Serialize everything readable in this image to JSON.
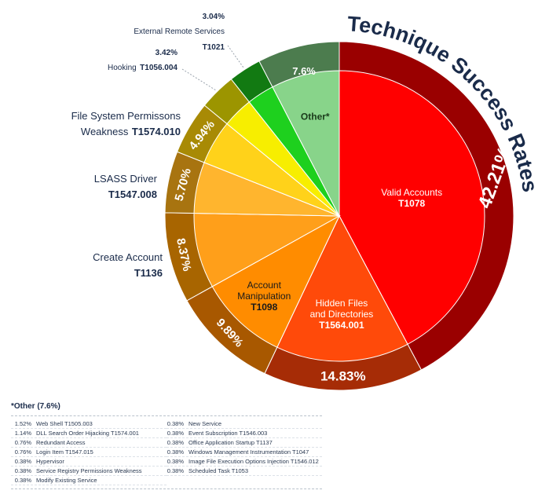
{
  "chart_data": {
    "type": "pie",
    "title": "Technique Success Rates",
    "slices": [
      {
        "name": "Valid Accounts",
        "code": "T1078",
        "value": 42.21,
        "pct_label": "42.21%",
        "inner": "#ff0000",
        "outer": "#9a0000",
        "text_color": "#ffffff"
      },
      {
        "name": "Hidden Files and Directories",
        "code": "T1564.001",
        "value": 14.83,
        "pct_label": "14.83%",
        "inner": "#ff4a0a",
        "outer": "#a62c06",
        "text_color": "#ffffff"
      },
      {
        "name": "Account Manipulation",
        "code": "T1098",
        "value": 9.89,
        "pct_label": "9.89%",
        "inner": "#ff8c00",
        "outer": "#a85800",
        "text_color": "#1a1a1a"
      },
      {
        "name": "Create Account",
        "code": "T1136",
        "value": 8.37,
        "pct_label": "8.37%",
        "inner": "#ff9f1a",
        "outer": "#a86500",
        "text_color": "#1a1a1a"
      },
      {
        "name": "LSASS Driver",
        "code": "T1547.008",
        "value": 5.7,
        "pct_label": "5.70%",
        "inner": "#ffb52e",
        "outer": "#a87410",
        "text_color": "#1a1a1a"
      },
      {
        "name": "File System Permissons Weakness",
        "code": "T1574.010",
        "value": 4.94,
        "pct_label": "4.94%",
        "inner": "#ffd21a",
        "outer": "#a88a05",
        "text_color": "#1a1a1a"
      },
      {
        "name": "Hooking",
        "code": "T1056.004",
        "value": 3.42,
        "pct_label": "3.42%",
        "inner": "#f7ee00",
        "outer": "#9c9500",
        "text_color": "#1a1a1a"
      },
      {
        "name": "External Remote Services",
        "code": "T1021",
        "value": 3.04,
        "pct_label": "3.04%",
        "inner": "#1ed01e",
        "outer": "#127a12",
        "text_color": "#1a1a1a"
      },
      {
        "name": "Other*",
        "code": "",
        "value": 7.6,
        "pct_label": "7.6%",
        "inner": "#88d48a",
        "outer": "#4c7c4e",
        "text_color": "#1a3a1a"
      }
    ],
    "other_breakdown": {
      "title": "*Other (7.6%)",
      "left": [
        {
          "pct": "1.52%",
          "label": "Web Shell T1505.003"
        },
        {
          "pct": "1.14%",
          "label": "DLL Search Order Hijacking T1574.001"
        },
        {
          "pct": "0.76%",
          "label": "Redundant Access"
        },
        {
          "pct": "0.76%",
          "label": "Login Item T1547.015"
        },
        {
          "pct": "0.38%",
          "label": "Hypervisor"
        },
        {
          "pct": "0.38%",
          "label": "Service Registry Permissions Weakness"
        },
        {
          "pct": "0.38%",
          "label": "Modify Existing Service"
        }
      ],
      "right": [
        {
          "pct": "0.38%",
          "label": "New Service"
        },
        {
          "pct": "0.38%",
          "label": "Event Subscription T1546.003"
        },
        {
          "pct": "0.38%",
          "label": "Office Application Startup T1137"
        },
        {
          "pct": "0.38%",
          "label": "Windows Management Instrumentation T1047"
        },
        {
          "pct": "0.38%",
          "label": "Image File Execution Options Injection T1546.012"
        },
        {
          "pct": "0.38%",
          "label": "Scheduled Task T1053"
        }
      ]
    }
  }
}
